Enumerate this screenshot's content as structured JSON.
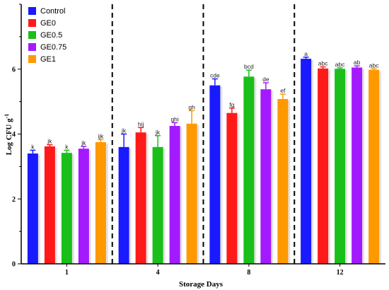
{
  "chart_data": {
    "type": "bar",
    "xlabel": "Storage Days",
    "ylabel": "Log CFU g",
    "ylabel_superscript": "-1",
    "ylim": [
      0,
      8
    ],
    "yticks": [
      0,
      2,
      4,
      6
    ],
    "categories": [
      "1",
      "4",
      "8",
      "12"
    ],
    "legend_position": "top-left",
    "grid": false,
    "group_separators": "dashed vertical lines between storage days",
    "series": [
      {
        "name": "Control",
        "color": "#1a1aff",
        "values": [
          3.4,
          3.6,
          5.5,
          6.32
        ],
        "errors": [
          0.1,
          0.4,
          0.2,
          0.05
        ],
        "labels": [
          "k",
          "jk",
          "cde",
          "a"
        ]
      },
      {
        "name": "GE0",
        "color": "#ff1a1a",
        "values": [
          3.62,
          4.05,
          4.65,
          6.02
        ],
        "errors": [
          0.05,
          0.15,
          0.15,
          0.05
        ],
        "labels": [
          "jk",
          "hij",
          "fg",
          "abc"
        ]
      },
      {
        "name": "GE0.5",
        "color": "#1abf1a",
        "values": [
          3.42,
          3.6,
          5.77,
          6.01
        ],
        "errors": [
          0.08,
          0.35,
          0.2,
          0.03
        ],
        "labels": [
          "k",
          "jk",
          "bcd",
          "abc"
        ]
      },
      {
        "name": "GE0.75",
        "color": "#a31aff",
        "values": [
          3.55,
          4.25,
          5.38,
          6.05
        ],
        "errors": [
          0.07,
          0.1,
          0.2,
          0.05
        ],
        "labels": [
          "jk",
          "ghi",
          "de",
          "ab"
        ]
      },
      {
        "name": "GE1",
        "color": "#ff9900",
        "values": [
          3.75,
          4.32,
          5.08,
          5.98
        ],
        "errors": [
          0.08,
          0.4,
          0.15,
          0.03
        ],
        "labels": [
          "ijk",
          "gh",
          "ef",
          "abc"
        ]
      }
    ]
  }
}
